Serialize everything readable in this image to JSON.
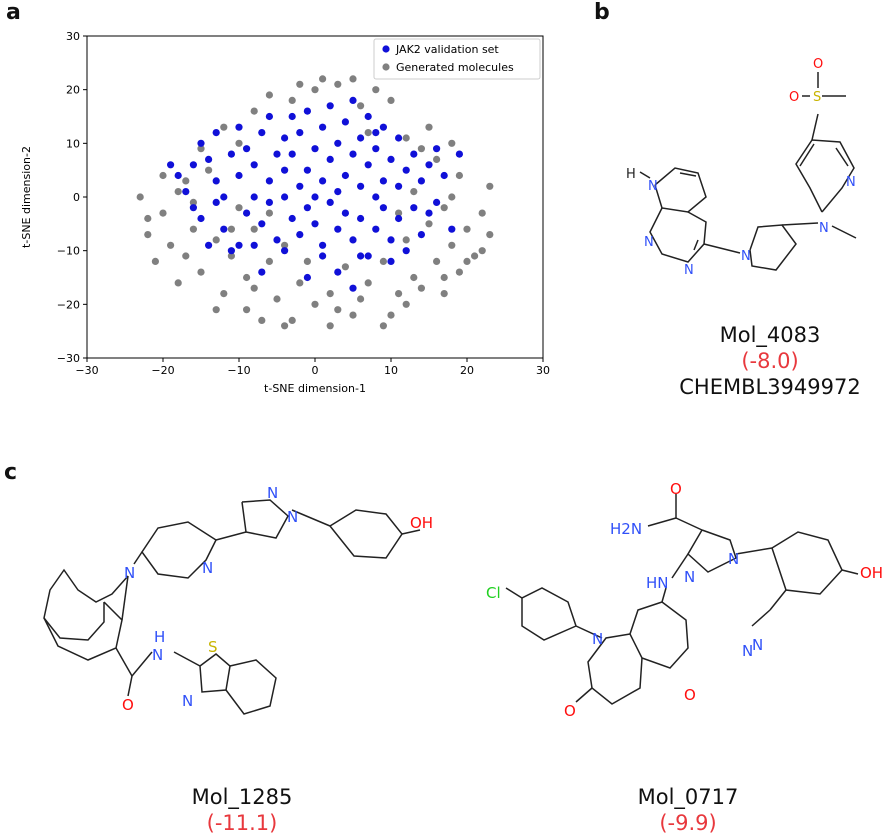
{
  "panels": {
    "a": "a",
    "b": "b",
    "c": "c"
  },
  "chart_data": {
    "type": "scatter",
    "xlabel": "t-SNE dimension-1",
    "ylabel": "t-SNE dimension-2",
    "xlim": [
      -30,
      30
    ],
    "ylim": [
      -30,
      30
    ],
    "xticks": [
      -30,
      -20,
      -10,
      0,
      10,
      20,
      30
    ],
    "yticks": [
      -30,
      -20,
      -10,
      0,
      10,
      20,
      30
    ],
    "grid": false,
    "legend_position": "top-right",
    "series": [
      {
        "name": "Generated molecules",
        "color": "#808080",
        "points": [
          [
            -23,
            0
          ],
          [
            -22,
            -4
          ],
          [
            -21,
            -12
          ],
          [
            -20,
            -3
          ],
          [
            -19,
            -9
          ],
          [
            -18,
            1
          ],
          [
            -18,
            -16
          ],
          [
            -17,
            3
          ],
          [
            -16,
            -6
          ],
          [
            -15,
            -14
          ],
          [
            -14,
            5
          ],
          [
            -13,
            -8
          ],
          [
            -12,
            -18
          ],
          [
            -11,
            -11
          ],
          [
            -10,
            10
          ],
          [
            -10,
            -2
          ],
          [
            -9,
            -21
          ],
          [
            -9,
            -15
          ],
          [
            -8,
            16
          ],
          [
            -8,
            -6
          ],
          [
            -7,
            -23
          ],
          [
            -6,
            -12
          ],
          [
            -6,
            19
          ],
          [
            -5,
            -19
          ],
          [
            -4,
            -9
          ],
          [
            -3,
            -23
          ],
          [
            -2,
            -16
          ],
          [
            -1,
            -12
          ],
          [
            0,
            20
          ],
          [
            1,
            22
          ],
          [
            2,
            -18
          ],
          [
            3,
            -21
          ],
          [
            3,
            21
          ],
          [
            4,
            -13
          ],
          [
            5,
            -22
          ],
          [
            6,
            -19
          ],
          [
            7,
            -16
          ],
          [
            8,
            20
          ],
          [
            9,
            -12
          ],
          [
            10,
            -22
          ],
          [
            11,
            -18
          ],
          [
            12,
            11
          ],
          [
            12,
            -8
          ],
          [
            13,
            -15
          ],
          [
            14,
            9
          ],
          [
            15,
            -5
          ],
          [
            16,
            -12
          ],
          [
            16,
            7
          ],
          [
            17,
            -2
          ],
          [
            17,
            -18
          ],
          [
            18,
            0
          ],
          [
            18,
            -9
          ],
          [
            19,
            4
          ],
          [
            19,
            -14
          ],
          [
            20,
            -6
          ],
          [
            21,
            -11
          ],
          [
            22,
            -3
          ],
          [
            23,
            2
          ],
          [
            23,
            -7
          ],
          [
            14,
            -17
          ],
          [
            10,
            18
          ],
          [
            6,
            17
          ],
          [
            -2,
            21
          ],
          [
            -12,
            13
          ],
          [
            -15,
            9
          ],
          [
            -20,
            4
          ],
          [
            -22,
            -7
          ],
          [
            -17,
            -11
          ],
          [
            -13,
            -21
          ],
          [
            9,
            -24
          ],
          [
            2,
            -24
          ],
          [
            -4,
            -24
          ],
          [
            15,
            13
          ],
          [
            18,
            10
          ],
          [
            20,
            -12
          ],
          [
            22,
            -10
          ],
          [
            11,
            -3
          ],
          [
            -11,
            -6
          ],
          [
            -6,
            -3
          ],
          [
            13,
            1
          ],
          [
            -16,
            -1
          ],
          [
            5,
            22
          ],
          [
            -3,
            18
          ],
          [
            7,
            12
          ],
          [
            -8,
            -17
          ],
          [
            0,
            -20
          ],
          [
            12,
            -20
          ],
          [
            17,
            -15
          ]
        ]
      },
      {
        "name": "JAK2 validation set",
        "color": "#1010d8",
        "points": [
          [
            -19,
            6
          ],
          [
            -18,
            4
          ],
          [
            -17,
            1
          ],
          [
            -16,
            -2
          ],
          [
            -15,
            10
          ],
          [
            -15,
            -4
          ],
          [
            -14,
            7
          ],
          [
            -14,
            -9
          ],
          [
            -13,
            3
          ],
          [
            -13,
            12
          ],
          [
            -12,
            -6
          ],
          [
            -12,
            0
          ],
          [
            -11,
            8
          ],
          [
            -11,
            -10
          ],
          [
            -10,
            4
          ],
          [
            -10,
            13
          ],
          [
            -9,
            -3
          ],
          [
            -9,
            9
          ],
          [
            -8,
            0
          ],
          [
            -8,
            6
          ],
          [
            -8,
            -9
          ],
          [
            -7,
            12
          ],
          [
            -7,
            -5
          ],
          [
            -6,
            3
          ],
          [
            -6,
            15
          ],
          [
            -6,
            -1
          ],
          [
            -5,
            8
          ],
          [
            -5,
            -8
          ],
          [
            -4,
            0
          ],
          [
            -4,
            11
          ],
          [
            -4,
            5
          ],
          [
            -3,
            -4
          ],
          [
            -3,
            15
          ],
          [
            -3,
            8
          ],
          [
            -2,
            2
          ],
          [
            -2,
            -7
          ],
          [
            -2,
            12
          ],
          [
            -1,
            5
          ],
          [
            -1,
            -2
          ],
          [
            -1,
            16
          ],
          [
            0,
            0
          ],
          [
            0,
            9
          ],
          [
            0,
            -5
          ],
          [
            1,
            13
          ],
          [
            1,
            3
          ],
          [
            1,
            -9
          ],
          [
            2,
            7
          ],
          [
            2,
            -1
          ],
          [
            2,
            17
          ],
          [
            3,
            10
          ],
          [
            3,
            -6
          ],
          [
            3,
            1
          ],
          [
            4,
            14
          ],
          [
            4,
            4
          ],
          [
            4,
            -3
          ],
          [
            5,
            8
          ],
          [
            5,
            -8
          ],
          [
            5,
            18
          ],
          [
            6,
            2
          ],
          [
            6,
            11
          ],
          [
            6,
            -4
          ],
          [
            7,
            6
          ],
          [
            7,
            15
          ],
          [
            7,
            -11
          ],
          [
            8,
            0
          ],
          [
            8,
            9
          ],
          [
            8,
            -6
          ],
          [
            9,
            3
          ],
          [
            9,
            13
          ],
          [
            9,
            -2
          ],
          [
            10,
            7
          ],
          [
            10,
            -8
          ],
          [
            11,
            11
          ],
          [
            11,
            -4
          ],
          [
            11,
            2
          ],
          [
            12,
            5
          ],
          [
            12,
            -10
          ],
          [
            13,
            8
          ],
          [
            13,
            -2
          ],
          [
            14,
            3
          ],
          [
            14,
            -7
          ],
          [
            15,
            6
          ],
          [
            15,
            -3
          ],
          [
            16,
            9
          ],
          [
            16,
            -1
          ],
          [
            17,
            4
          ],
          [
            18,
            -6
          ],
          [
            19,
            8
          ],
          [
            -7,
            -14
          ],
          [
            -4,
            -10
          ],
          [
            1,
            -11
          ],
          [
            6,
            -11
          ],
          [
            10,
            -12
          ],
          [
            -10,
            -9
          ],
          [
            -16,
            6
          ],
          [
            -13,
            -1
          ],
          [
            3,
            -14
          ],
          [
            8,
            12
          ],
          [
            -1,
            -15
          ],
          [
            5,
            -17
          ]
        ]
      }
    ]
  },
  "molecules": [
    {
      "name": "Mol_4083",
      "score": "(-8.0)",
      "chembl": "CHEMBL3949972",
      "atoms": [
        "H",
        "N",
        "N",
        "N",
        "N",
        "N",
        "N",
        "O",
        "S",
        "O"
      ]
    },
    {
      "name": "Mol_1285",
      "score": "(-11.1)",
      "atoms": [
        "N",
        "N",
        "N",
        "OH",
        "N",
        "N",
        "H",
        "S",
        "N",
        "O"
      ]
    },
    {
      "name": "Mol_0717",
      "score": "(-9.9)",
      "atoms": [
        "O",
        "H2N",
        "N",
        "N",
        "N",
        "OH",
        "HN",
        "N",
        "Cl",
        "N",
        "O",
        "O"
      ]
    }
  ]
}
